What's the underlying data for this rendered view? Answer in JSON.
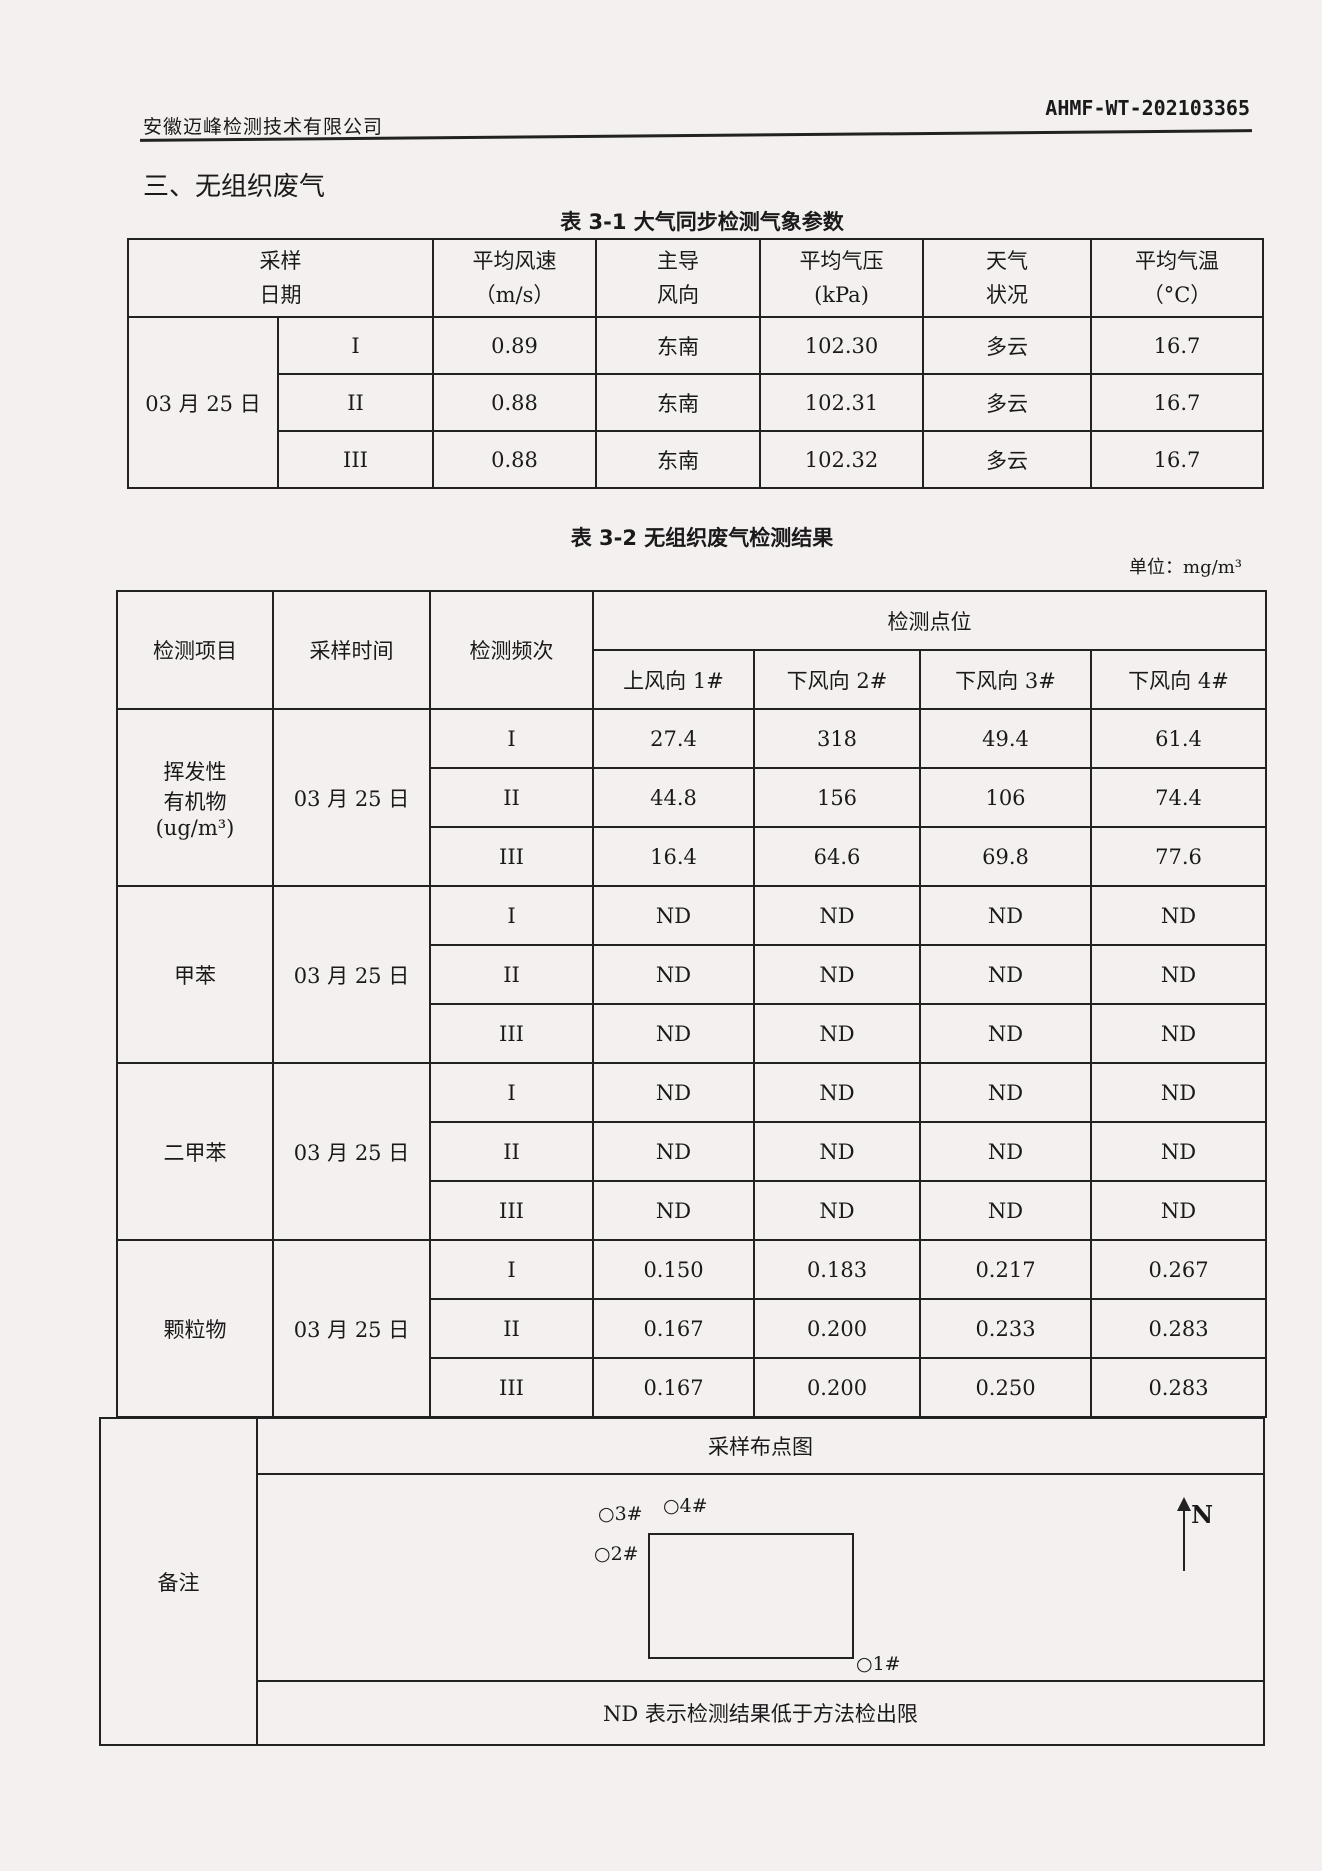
{
  "header": {
    "company": "安徽迈峰检测技术有限公司",
    "doc_no": "AHMF-WT-202103365"
  },
  "section_title": "三、无组织废气",
  "table1": {
    "caption": "表 3-1 大气同步检测气象参数",
    "headers": [
      "采样\n日期",
      "平均风速\n（m/s）",
      "主导\n风向",
      "平均气压\n(kPa)",
      "天气\n状况",
      "平均气温\n（°C）"
    ],
    "date": "03 月 25 日",
    "rows": [
      {
        "freq": "I",
        "wind_speed": "0.89",
        "wind_dir": "东南",
        "pressure": "102.30",
        "weather": "多云",
        "temp": "16.7"
      },
      {
        "freq": "II",
        "wind_speed": "0.88",
        "wind_dir": "东南",
        "pressure": "102.31",
        "weather": "多云",
        "temp": "16.7"
      },
      {
        "freq": "III",
        "wind_speed": "0.88",
        "wind_dir": "东南",
        "pressure": "102.32",
        "weather": "多云",
        "temp": "16.7"
      }
    ]
  },
  "table2": {
    "caption": "表 3-2 无组织废气检测结果",
    "unit": "单位：mg/m³",
    "headers": {
      "item": "检测项目",
      "time": "采样时间",
      "freq": "检测频次",
      "points": "检测点位",
      "point_cols": [
        "上风向 1#",
        "下风向 2#",
        "下风向 3#",
        "下风向 4#"
      ]
    },
    "groups": [
      {
        "item": "挥发性\n有机物\n(ug/m³)",
        "date": "03 月 25 日",
        "rows": [
          {
            "freq": "I",
            "values": [
              "27.4",
              "318",
              "49.4",
              "61.4"
            ]
          },
          {
            "freq": "II",
            "values": [
              "44.8",
              "156",
              "106",
              "74.4"
            ]
          },
          {
            "freq": "III",
            "values": [
              "16.4",
              "64.6",
              "69.8",
              "77.6"
            ]
          }
        ]
      },
      {
        "item": "甲苯",
        "date": "03 月 25 日",
        "rows": [
          {
            "freq": "I",
            "values": [
              "ND",
              "ND",
              "ND",
              "ND"
            ]
          },
          {
            "freq": "II",
            "values": [
              "ND",
              "ND",
              "ND",
              "ND"
            ]
          },
          {
            "freq": "III",
            "values": [
              "ND",
              "ND",
              "ND",
              "ND"
            ]
          }
        ]
      },
      {
        "item": "二甲苯",
        "date": "03 月 25 日",
        "rows": [
          {
            "freq": "I",
            "values": [
              "ND",
              "ND",
              "ND",
              "ND"
            ]
          },
          {
            "freq": "II",
            "values": [
              "ND",
              "ND",
              "ND",
              "ND"
            ]
          },
          {
            "freq": "III",
            "values": [
              "ND",
              "ND",
              "ND",
              "ND"
            ]
          }
        ]
      },
      {
        "item": "颗粒物",
        "date": "03 月 25 日",
        "rows": [
          {
            "freq": "I",
            "values": [
              "0.150",
              "0.183",
              "0.217",
              "0.267"
            ]
          },
          {
            "freq": "II",
            "values": [
              "0.167",
              "0.200",
              "0.233",
              "0.283"
            ]
          },
          {
            "freq": "III",
            "values": [
              "0.167",
              "0.200",
              "0.250",
              "0.283"
            ]
          }
        ]
      }
    ]
  },
  "remarks": {
    "label": "备注",
    "diagram_title": "采样布点图",
    "points": [
      "○1#",
      "○2#",
      "○3#",
      "○4#"
    ],
    "north": "N",
    "note": "ND 表示检测结果低于方法检出限"
  }
}
